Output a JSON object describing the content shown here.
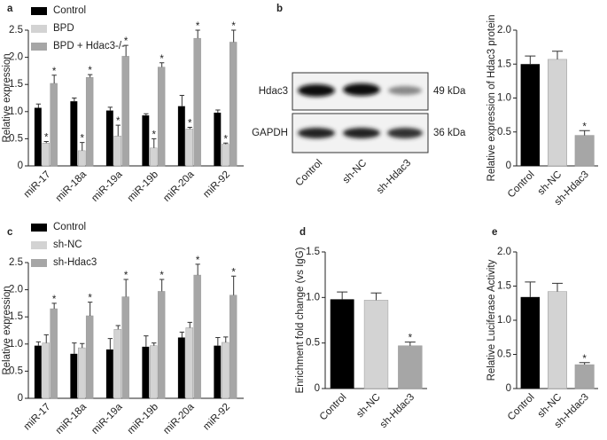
{
  "chart_data": [
    {
      "type": "bar",
      "panel": "a",
      "ylabel": "Relative expression",
      "legend": "upper left",
      "categories": [
        "miR-17",
        "miR-18a",
        "miR-19a",
        "miR-19b",
        "miR-20a",
        "miR-92"
      ],
      "ylim": [
        0,
        2.5
      ],
      "yticks": [
        0,
        0.5,
        {
          "value": 1,
          "label": "1.0"
        },
        1.5,
        {
          "value": 2,
          "label": "2.0"
        },
        2.5
      ],
      "series": [
        {
          "name": "Control",
          "color": "#000000",
          "values": [
            1.07,
            1.19,
            1.02,
            0.93,
            1.1,
            0.98
          ],
          "errors": [
            0.07,
            0.06,
            0.06,
            0.03,
            0.2,
            0.05
          ],
          "markers": [
            null,
            null,
            null,
            null,
            null,
            null
          ]
        },
        {
          "name": "BPD",
          "color": "#d3d3d3",
          "values": [
            0.42,
            0.28,
            0.55,
            0.33,
            0.68,
            0.4
          ],
          "errors": [
            0.03,
            0.15,
            0.2,
            0.17,
            0.03,
            0.02
          ],
          "markers": [
            "*",
            "*",
            "*",
            "*",
            "*",
            "*"
          ]
        },
        {
          "name": "BPD + Hdac3-/-",
          "color": "#a6a6a6",
          "values": [
            1.52,
            1.63,
            2.02,
            1.82,
            2.35,
            2.28
          ],
          "errors": [
            0.15,
            0.05,
            0.2,
            0.08,
            0.15,
            0.22
          ],
          "markers": [
            "*",
            "*",
            "*",
            "*",
            "*",
            "*"
          ]
        }
      ]
    },
    {
      "type": "bar",
      "panel": "b",
      "ylabel": "Relative expression of Hdac3 protein",
      "categories": [
        "Control",
        "sh-NC",
        "sh-Hdac3"
      ],
      "ylim": [
        0,
        2
      ],
      "yticks": [
        0,
        0.5,
        {
          "value": 1,
          "label": "1.0"
        },
        1.5,
        {
          "value": 2,
          "label": "2.0"
        }
      ],
      "values": [
        1.5,
        1.57,
        0.45
      ],
      "errors": [
        0.12,
        0.12,
        0.07
      ],
      "markers": [
        null,
        null,
        "*"
      ],
      "colors": [
        "#000000",
        "#d3d3d3",
        "#a6a6a6"
      ]
    },
    {
      "type": "bar",
      "panel": "c",
      "ylabel": "Relative expression",
      "legend": "upper left",
      "categories": [
        "miR-17",
        "miR-18a",
        "miR-19a",
        "miR-19b",
        "miR-20a",
        "miR-92"
      ],
      "ylim": [
        0,
        2.5
      ],
      "yticks": [
        0,
        0.5,
        {
          "value": 1,
          "label": "1.0"
        },
        1.5,
        {
          "value": 2,
          "label": "2.0"
        },
        2.5
      ],
      "series": [
        {
          "name": "Control",
          "color": "#000000",
          "values": [
            0.97,
            0.82,
            0.9,
            0.95,
            1.12,
            0.97
          ],
          "errors": [
            0.07,
            0.2,
            0.2,
            0.2,
            0.1,
            0.15
          ],
          "markers": [
            null,
            null,
            null,
            null,
            null,
            null
          ]
        },
        {
          "name": "sh-NC",
          "color": "#d3d3d3",
          "values": [
            1.02,
            0.93,
            1.27,
            0.97,
            1.3,
            1.03
          ],
          "errors": [
            0.15,
            0.08,
            0.07,
            0.05,
            0.1,
            0.1
          ],
          "markers": [
            null,
            null,
            null,
            null,
            null,
            null
          ]
        },
        {
          "name": "sh-Hdac3",
          "color": "#a6a6a6",
          "values": [
            1.65,
            1.52,
            1.87,
            1.97,
            2.27,
            1.9
          ],
          "errors": [
            0.1,
            0.25,
            0.32,
            0.22,
            0.2,
            0.35
          ],
          "markers": [
            "*",
            "*",
            "*",
            "*",
            "*",
            "*"
          ]
        }
      ]
    },
    {
      "type": "bar",
      "panel": "d",
      "ylabel": "Enrichment fold change (vs IgG)",
      "categories": [
        "Control",
        "sh-NC",
        "sh-Hdac3"
      ],
      "ylim": [
        0,
        1.5
      ],
      "yticks": [
        0,
        0.5,
        {
          "value": 1,
          "label": "1.0"
        },
        1.5
      ],
      "values": [
        0.98,
        0.97,
        0.47
      ],
      "errors": [
        0.08,
        0.08,
        0.04
      ],
      "markers": [
        null,
        null,
        "*"
      ],
      "colors": [
        "#000000",
        "#d3d3d3",
        "#a6a6a6"
      ]
    },
    {
      "type": "bar",
      "panel": "e",
      "ylabel": "Relative Luciferase Activity",
      "categories": [
        "Control",
        "sh-NC",
        "sh-Hdac3"
      ],
      "ylim": [
        0,
        2
      ],
      "yticks": [
        0,
        0.5,
        {
          "value": 1,
          "label": "1.0"
        },
        1.5,
        {
          "value": 2,
          "label": "2.0"
        }
      ],
      "values": [
        1.34,
        1.42,
        0.35
      ],
      "errors": [
        0.22,
        0.12,
        0.03
      ],
      "markers": [
        null,
        null,
        "*"
      ],
      "colors": [
        "#000000",
        "#d3d3d3",
        "#a6a6a6"
      ]
    }
  ],
  "blot": {
    "rows": [
      {
        "label": "Hdac3",
        "size": "49 kDa"
      },
      {
        "label": "GAPDH",
        "size": "36 kDa"
      }
    ],
    "lanes": [
      "Control",
      "sh-NC",
      "sh-Hdac3"
    ]
  }
}
